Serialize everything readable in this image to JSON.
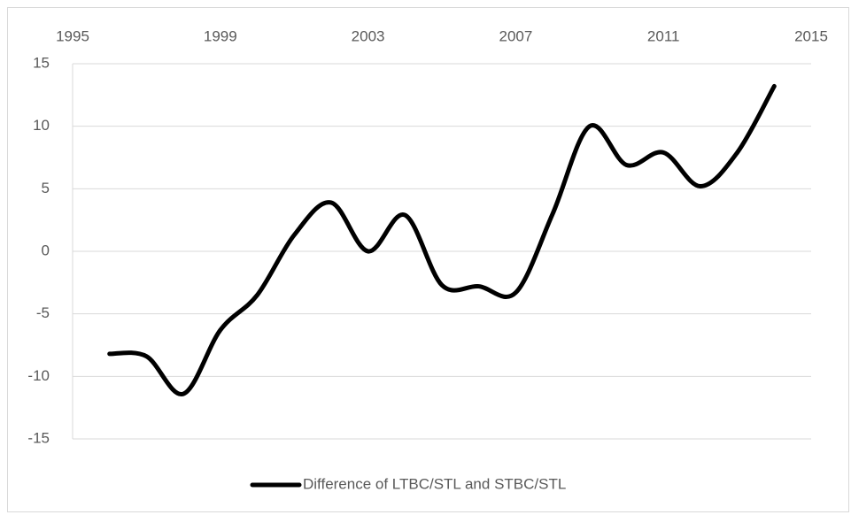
{
  "chart_data": {
    "type": "line",
    "x": [
      1996,
      1997,
      1998,
      1999,
      2000,
      2001,
      2002,
      2003,
      2004,
      2005,
      2006,
      2007,
      2008,
      2009,
      2010,
      2011,
      2012,
      2013,
      2014
    ],
    "series": [
      {
        "name": "Difference of LTBC/STL and STBC/STL",
        "color": "#000000",
        "values": [
          -8.2,
          -8.4,
          -11.4,
          -6.3,
          -3.5,
          1.3,
          3.9,
          0,
          2.9,
          -2.7,
          -2.8,
          -3.3,
          3,
          10,
          6.9,
          7.9,
          5.2,
          7.9,
          13.2
        ]
      }
    ],
    "xlim": [
      1995,
      2015
    ],
    "xticks": [
      1995,
      1999,
      2003,
      2007,
      2011,
      2015
    ],
    "ylim": [
      -15,
      15
    ],
    "yticks": [
      -15,
      -10,
      -5,
      0,
      5,
      10,
      15
    ],
    "grid": true,
    "smooth": true,
    "legend": "bottom"
  }
}
